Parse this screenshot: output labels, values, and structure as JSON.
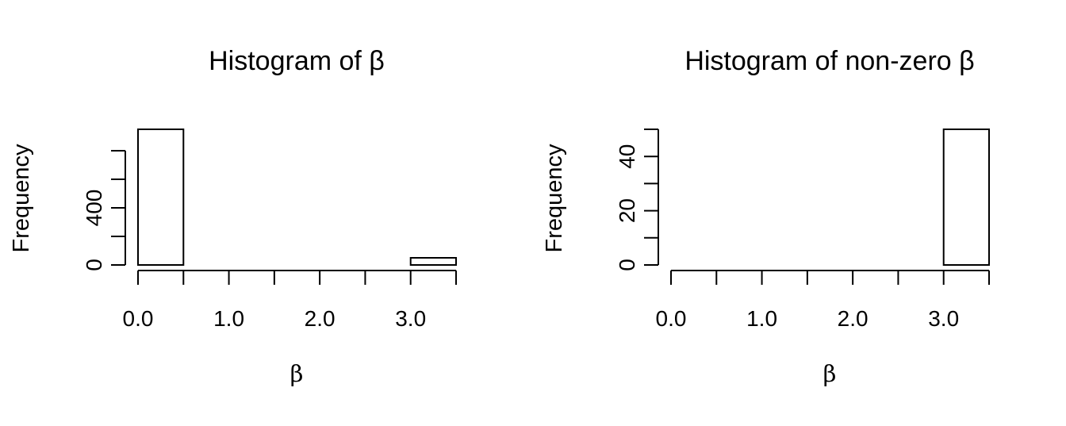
{
  "chart_data": [
    {
      "type": "bar",
      "title": "Histogram of β",
      "xlabel": "β",
      "ylabel": "Frequency",
      "bins": [
        {
          "from": 0.0,
          "to": 0.5,
          "count": 950
        },
        {
          "from": 0.5,
          "to": 1.0,
          "count": 0
        },
        {
          "from": 1.0,
          "to": 1.5,
          "count": 0
        },
        {
          "from": 1.5,
          "to": 2.0,
          "count": 0
        },
        {
          "from": 2.0,
          "to": 2.5,
          "count": 0
        },
        {
          "from": 2.5,
          "to": 3.0,
          "count": 0
        },
        {
          "from": 3.0,
          "to": 3.5,
          "count": 50
        }
      ],
      "xlim": [
        0,
        3.5
      ],
      "ylim": [
        0,
        950
      ],
      "x_ticks": [
        0,
        0.5,
        1.0,
        1.5,
        2.0,
        2.5,
        3.0,
        3.5
      ],
      "x_tick_labels": [
        "0.0",
        "1.0",
        "2.0",
        "3.0"
      ],
      "y_ticks": [
        0,
        200,
        400,
        600,
        800
      ],
      "y_tick_labels": [
        "0",
        "400"
      ],
      "grid": false,
      "legend": "none"
    },
    {
      "type": "bar",
      "title": "Histogram of non-zero β",
      "xlabel": "β",
      "ylabel": "Frequency",
      "bins": [
        {
          "from": 0.0,
          "to": 0.5,
          "count": 0
        },
        {
          "from": 0.5,
          "to": 1.0,
          "count": 0
        },
        {
          "from": 1.0,
          "to": 1.5,
          "count": 0
        },
        {
          "from": 1.5,
          "to": 2.0,
          "count": 0
        },
        {
          "from": 2.0,
          "to": 2.5,
          "count": 0
        },
        {
          "from": 2.5,
          "to": 3.0,
          "count": 0
        },
        {
          "from": 3.0,
          "to": 3.5,
          "count": 50
        }
      ],
      "xlim": [
        0,
        3.5
      ],
      "ylim": [
        0,
        50
      ],
      "x_ticks": [
        0,
        0.5,
        1.0,
        1.5,
        2.0,
        2.5,
        3.0,
        3.5
      ],
      "x_tick_labels": [
        "0.0",
        "1.0",
        "2.0",
        "3.0"
      ],
      "y_ticks": [
        0,
        10,
        20,
        30,
        40,
        50
      ],
      "y_tick_labels": [
        "0",
        "20",
        "40"
      ],
      "grid": false,
      "legend": "none"
    }
  ]
}
